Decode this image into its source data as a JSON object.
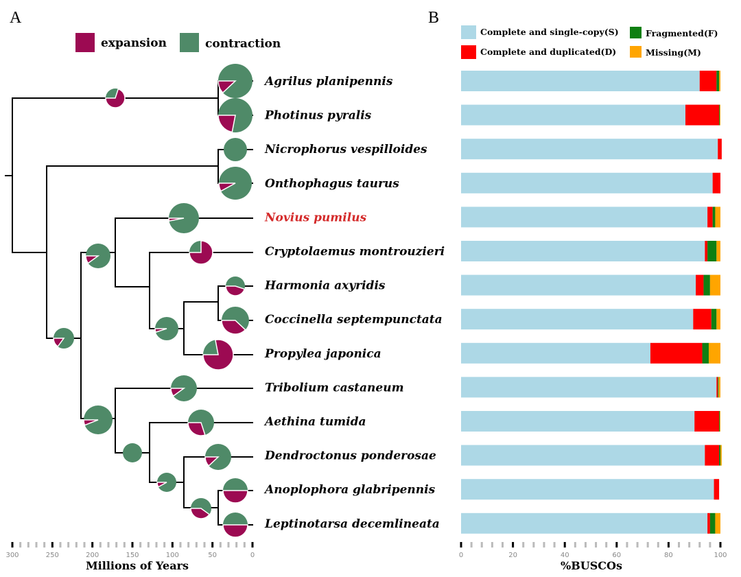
{
  "colors": {
    "expansion": "#9c0a52",
    "contraction": "#4f8a68",
    "single": "#add8e6",
    "duplicated": "#ff0000",
    "fragmented": "#0f7f12",
    "missing": "#ffa500",
    "highlight": "#d42a2a"
  },
  "panel_a": {
    "label": "A",
    "legend": {
      "expansion": "expansion",
      "contraction": "contraction"
    },
    "species": [
      {
        "name": "Agrilus planipennis",
        "highlight": false,
        "expansion_fraction": 0.12
      },
      {
        "name": "Photinus pyralis",
        "highlight": false,
        "expansion_fraction": 0.22
      },
      {
        "name": "Nicrophorus vespilloides",
        "highlight": false,
        "expansion_fraction": 0.0
      },
      {
        "name": "Onthophagus taurus",
        "highlight": false,
        "expansion_fraction": 0.08
      },
      {
        "name": "Novius pumilus",
        "highlight": true,
        "expansion_fraction": 0.03
      },
      {
        "name": "Cryptolaemus montrouzieri",
        "highlight": false,
        "expansion_fraction": 0.75
      },
      {
        "name": "Harmonia axyridis",
        "highlight": false,
        "expansion_fraction": 0.45
      },
      {
        "name": "Coccinella septempunctata",
        "highlight": false,
        "expansion_fraction": 0.38
      },
      {
        "name": "Propylea japonica",
        "highlight": false,
        "expansion_fraction": 0.78
      },
      {
        "name": "Tribolium castaneum",
        "highlight": false,
        "expansion_fraction": 0.1
      },
      {
        "name": "Aethina tumida",
        "highlight": false,
        "expansion_fraction": 0.3
      },
      {
        "name": "Dendroctonus ponderosae",
        "highlight": false,
        "expansion_fraction": 0.12
      },
      {
        "name": "Anoplophora glabripennis",
        "highlight": false,
        "expansion_fraction": 0.5
      },
      {
        "name": "Leptinotarsa decemlineata",
        "highlight": false,
        "expansion_fraction": 0.5
      }
    ],
    "internal_node_expansion_fractions": [
      0.7,
      0.1,
      0.15,
      0.06,
      0.0,
      0.05,
      0.08,
      0.4,
      0.3
    ],
    "axis": {
      "title": "Millions of Years",
      "ticks": [
        300,
        250,
        200,
        150,
        100,
        50,
        0
      ]
    }
  },
  "chart_data": {
    "type": "bar",
    "stacked": true,
    "orientation": "horizontal",
    "title": "B",
    "xlabel": "%BUSCOs",
    "xlim": [
      0,
      100
    ],
    "x_ticks": [
      0,
      20,
      40,
      60,
      80,
      100
    ],
    "legend_placement": "top",
    "categories": [
      "Agrilus planipennis",
      "Photinus pyralis",
      "Nicrophorus vespilloides",
      "Onthophagus taurus",
      "Novius pumilus",
      "Cryptolaemus montrouzieri",
      "Harmonia axyridis",
      "Coccinella septempunctata",
      "Propylea japonica",
      "Tribolium castaneum",
      "Aethina tumida",
      "Dendroctonus ponderosae",
      "Anoplophora glabripennis",
      "Leptinotarsa decemlineata"
    ],
    "series": [
      {
        "name": "Complete and single-copy(S)",
        "color": "#add8e6",
        "values": [
          92,
          86.5,
          99,
          97,
          95,
          94,
          90.5,
          89.5,
          73,
          98.5,
          90,
          94,
          97.5,
          95
        ]
      },
      {
        "name": "Complete and duplicated(D)",
        "color": "#ff0000",
        "values": [
          6.5,
          13,
          1.5,
          3,
          2,
          1,
          3,
          7,
          20,
          0.5,
          9.5,
          5.5,
          2,
          1
        ]
      },
      {
        "name": "Fragmented(F)",
        "color": "#0f7f12",
        "values": [
          1,
          0.3,
          0,
          0,
          1,
          3.5,
          2.5,
          2,
          2.5,
          0.3,
          0.3,
          0.5,
          0,
          2
        ]
      },
      {
        "name": "Missing(M)",
        "color": "#ffa500",
        "values": [
          0.5,
          0.2,
          0,
          0,
          2,
          1.5,
          4,
          1.5,
          4.5,
          0.7,
          0.2,
          0.5,
          0,
          2
        ]
      }
    ]
  }
}
